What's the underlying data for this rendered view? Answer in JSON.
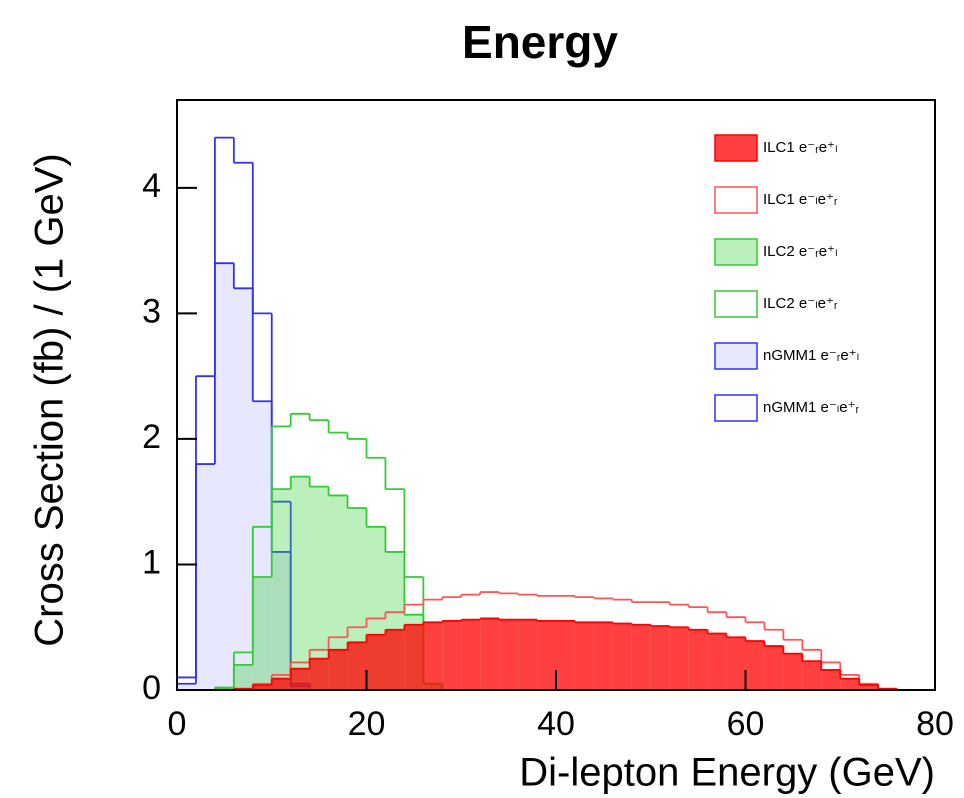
{
  "chart_data": {
    "type": "histogram",
    "title": "Energy",
    "x_label": "Di-lepton Energy (GeV)",
    "y_label": "Cross Section (fb) / (1 GeV)",
    "bins": [
      0,
      2,
      4,
      6,
      8,
      10,
      12,
      14,
      16,
      18,
      20,
      22,
      24,
      26,
      28,
      30,
      32,
      34,
      36,
      38,
      40,
      42,
      44,
      46,
      48,
      50,
      52,
      54,
      56,
      58,
      60,
      62,
      64,
      66,
      68,
      70,
      72,
      74,
      76,
      78,
      80
    ],
    "xlim": [
      0,
      80
    ],
    "xticks": [
      0,
      20,
      40,
      60,
      80
    ],
    "ylim": [
      0,
      4.7
    ],
    "yticks": [
      0,
      1,
      2,
      3,
      4
    ],
    "legend": "upper right",
    "series": [
      {
        "name": "nGMM1 e⁻ₗe⁺ᵣ",
        "color": "#3333ee",
        "filled": false,
        "values": [
          0.1,
          2.5,
          4.4,
          4.2,
          3.0,
          1.5,
          0.05,
          0,
          0,
          0,
          0,
          0,
          0,
          0,
          0,
          0,
          0,
          0,
          0,
          0,
          0,
          0,
          0,
          0,
          0,
          0,
          0,
          0,
          0,
          0,
          0,
          0,
          0,
          0,
          0,
          0,
          0,
          0,
          0,
          0
        ]
      },
      {
        "name": "nGMM1 e⁻ᵣe⁺ₗ",
        "color": "#3333ee",
        "filled": true,
        "fill_color": "rgba(120,120,255,0.18)",
        "values": [
          0.05,
          1.8,
          3.4,
          3.2,
          2.3,
          1.1,
          0.03,
          0,
          0,
          0,
          0,
          0,
          0,
          0,
          0,
          0,
          0,
          0,
          0,
          0,
          0,
          0,
          0,
          0,
          0,
          0,
          0,
          0,
          0,
          0,
          0,
          0,
          0,
          0,
          0,
          0,
          0,
          0,
          0,
          0
        ]
      },
      {
        "name": "ILC2 e⁻ₗe⁺ᵣ",
        "color": "#33cc33",
        "filled": false,
        "values": [
          0,
          0,
          0.02,
          0.3,
          1.3,
          2.1,
          2.2,
          2.15,
          2.05,
          2.0,
          1.85,
          1.6,
          0.9,
          0.05,
          0,
          0,
          0,
          0,
          0,
          0,
          0,
          0,
          0,
          0,
          0,
          0,
          0,
          0,
          0,
          0,
          0,
          0,
          0,
          0,
          0,
          0,
          0,
          0,
          0,
          0
        ]
      },
      {
        "name": "ILC2 e⁻ᵣe⁺ₗ",
        "color": "#33cc33",
        "filled": true,
        "fill_color": "rgba(60,210,60,0.35)",
        "values": [
          0,
          0,
          0.01,
          0.2,
          0.9,
          1.6,
          1.7,
          1.62,
          1.55,
          1.45,
          1.3,
          1.1,
          0.6,
          0.05,
          0,
          0,
          0,
          0,
          0,
          0,
          0,
          0,
          0,
          0,
          0,
          0,
          0,
          0,
          0,
          0,
          0,
          0,
          0,
          0,
          0,
          0,
          0,
          0,
          0,
          0
        ]
      },
      {
        "name": "ILC1 e⁻ₗe⁺ᵣ",
        "color": "#ff5555",
        "filled": false,
        "values": [
          0,
          0,
          0,
          0.01,
          0.05,
          0.12,
          0.22,
          0.32,
          0.42,
          0.5,
          0.57,
          0.62,
          0.68,
          0.72,
          0.74,
          0.76,
          0.78,
          0.77,
          0.76,
          0.75,
          0.75,
          0.74,
          0.73,
          0.72,
          0.7,
          0.7,
          0.68,
          0.66,
          0.62,
          0.58,
          0.54,
          0.48,
          0.4,
          0.32,
          0.22,
          0.12,
          0.05,
          0.01,
          0,
          0
        ]
      },
      {
        "name": "ILC1 e⁻ᵣe⁺ₗ",
        "color": "#ff0000",
        "filled": true,
        "fill_color": "rgba(255,0,0,0.75)",
        "values": [
          0,
          0,
          0,
          0.01,
          0.04,
          0.09,
          0.17,
          0.25,
          0.32,
          0.38,
          0.44,
          0.48,
          0.52,
          0.54,
          0.55,
          0.56,
          0.57,
          0.56,
          0.56,
          0.55,
          0.55,
          0.54,
          0.54,
          0.53,
          0.52,
          0.51,
          0.5,
          0.48,
          0.45,
          0.42,
          0.39,
          0.35,
          0.29,
          0.23,
          0.16,
          0.09,
          0.04,
          0.01,
          0,
          0
        ]
      }
    ]
  }
}
